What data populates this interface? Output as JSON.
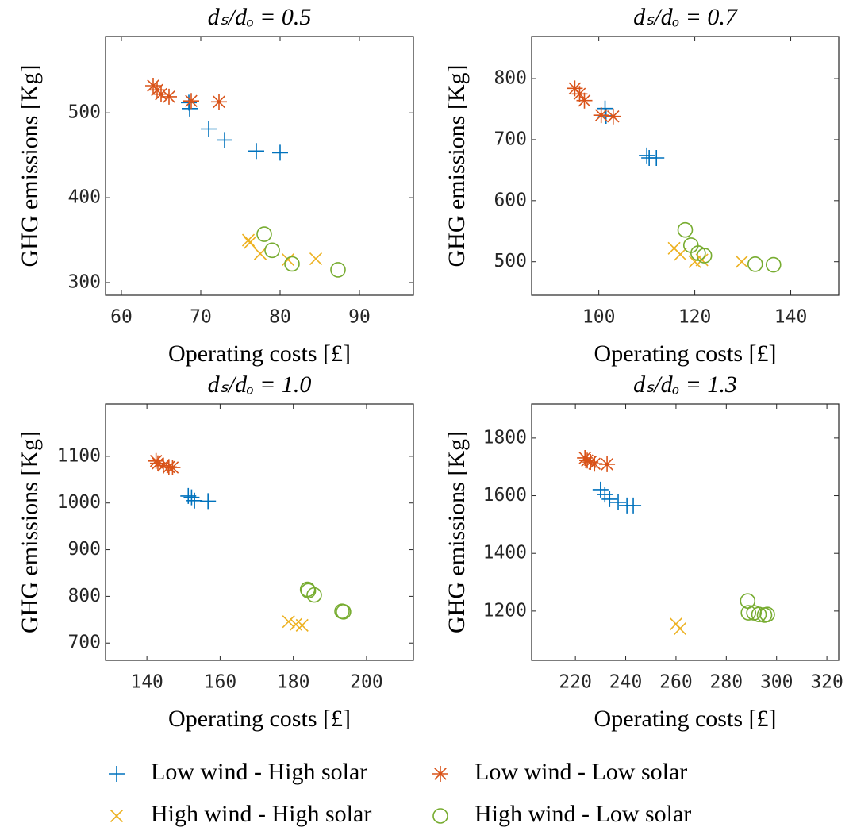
{
  "chart_data": [
    {
      "type": "scatter",
      "title": "dₛ/dₒ = 0.5",
      "x_label": "Operating costs [£]",
      "y_label": "GHG emissions [Kg]",
      "xlim": [
        58,
        96.8
      ],
      "ylim": [
        285,
        590
      ],
      "xticks": [
        60,
        70,
        80,
        90
      ],
      "yticks": [
        300,
        400,
        500
      ],
      "series": [
        {
          "x": [
            68.5,
            68.6,
            71,
            73,
            77,
            80
          ],
          "values": [
            512,
            505,
            481,
            468,
            455,
            453
          ]
        },
        {
          "x": [
            64,
            64.5,
            65,
            66,
            68.8,
            72.3
          ],
          "values": [
            532,
            527,
            522,
            519,
            514,
            513
          ]
        },
        {
          "x": [
            76,
            76.2,
            77.5,
            81,
            84.5
          ],
          "values": [
            350,
            347,
            334,
            327,
            328
          ]
        },
        {
          "x": [
            78,
            79,
            81.5,
            87.3
          ],
          "values": [
            357,
            338,
            322,
            315
          ]
        }
      ]
    },
    {
      "type": "scatter",
      "title": "dₛ/dₒ = 0.7",
      "x_label": "Operating costs [£]",
      "y_label": "GHG emissions [Kg]",
      "xlim": [
        86,
        150
      ],
      "ylim": [
        445,
        869
      ],
      "xticks": [
        100,
        120,
        140
      ],
      "yticks": [
        500,
        600,
        700,
        800
      ],
      "series": [
        {
          "x": [
            101.3,
            101.5,
            110,
            110.5,
            112
          ],
          "values": [
            751,
            739,
            674,
            670,
            670
          ]
        },
        {
          "x": [
            95,
            96,
            97,
            100.5,
            103
          ],
          "values": [
            784,
            775,
            764,
            740,
            738
          ]
        },
        {
          "x": [
            115.7,
            117,
            120,
            121.5,
            129.8
          ],
          "values": [
            522,
            512,
            500,
            503,
            500
          ]
        },
        {
          "x": [
            118,
            119.2,
            120.7,
            122,
            132.6,
            136.4
          ],
          "values": [
            552,
            527,
            514,
            510,
            496,
            495
          ]
        }
      ]
    },
    {
      "type": "scatter",
      "title": "dₛ/dₒ = 1.0",
      "x_label": "Operating costs [£]",
      "y_label": "GHG emissions [Kg]",
      "xlim": [
        128.7,
        212.8
      ],
      "ylim": [
        663,
        1212
      ],
      "xticks": [
        140,
        160,
        180,
        200
      ],
      "yticks": [
        700,
        800,
        900,
        1000,
        1100
      ],
      "series": [
        {
          "x": [
            151.3,
            152.2,
            153,
            156.7
          ],
          "values": [
            1015,
            1012,
            1005,
            1004
          ]
        },
        {
          "x": [
            142.5,
            143,
            144.5,
            146,
            147
          ],
          "values": [
            1090,
            1085,
            1080,
            1077,
            1076
          ]
        },
        {
          "x": [
            178.7,
            180.7,
            182.4
          ],
          "values": [
            746,
            740,
            738
          ]
        },
        {
          "x": [
            183.9,
            184.1,
            185.7,
            193.3,
            193.7
          ],
          "values": [
            815,
            812,
            803,
            768,
            767
          ]
        }
      ]
    },
    {
      "type": "scatter",
      "title": "dₛ/dₒ = 1.3",
      "x_label": "Operating costs [£]",
      "y_label": "GHG emissions [Kg]",
      "xlim": [
        202.6,
        324.7
      ],
      "ylim": [
        1029,
        1918
      ],
      "xticks": [
        220,
        240,
        260,
        280,
        300,
        320
      ],
      "yticks": [
        1200,
        1400,
        1600,
        1800
      ],
      "series": [
        {
          "x": [
            230,
            231.7,
            233.6,
            237,
            240.5,
            243
          ],
          "values": [
            1621,
            1604,
            1588,
            1577,
            1566,
            1566
          ]
        },
        {
          "x": [
            223.8,
            224.7,
            226,
            227.6,
            232.6
          ],
          "values": [
            1731,
            1722,
            1717,
            1711,
            1709
          ]
        },
        {
          "x": [
            260,
            261.6
          ],
          "values": [
            1155,
            1139
          ]
        },
        {
          "x": [
            288.5,
            288.8,
            291,
            293,
            295.2,
            296.3
          ],
          "values": [
            1235,
            1194,
            1194,
            1188,
            1186,
            1188
          ]
        }
      ]
    }
  ],
  "legend": [
    {
      "name": "Low wind - High solar",
      "color": "#0072BD",
      "marker": "+"
    },
    {
      "name": "Low wind - Low solar",
      "color": "#D95319",
      "marker": "*"
    },
    {
      "name": "High wind - High solar",
      "color": "#EDB120",
      "marker": "x"
    },
    {
      "name": "High wind - Low solar",
      "color": "#77AC30",
      "marker": "o"
    }
  ]
}
